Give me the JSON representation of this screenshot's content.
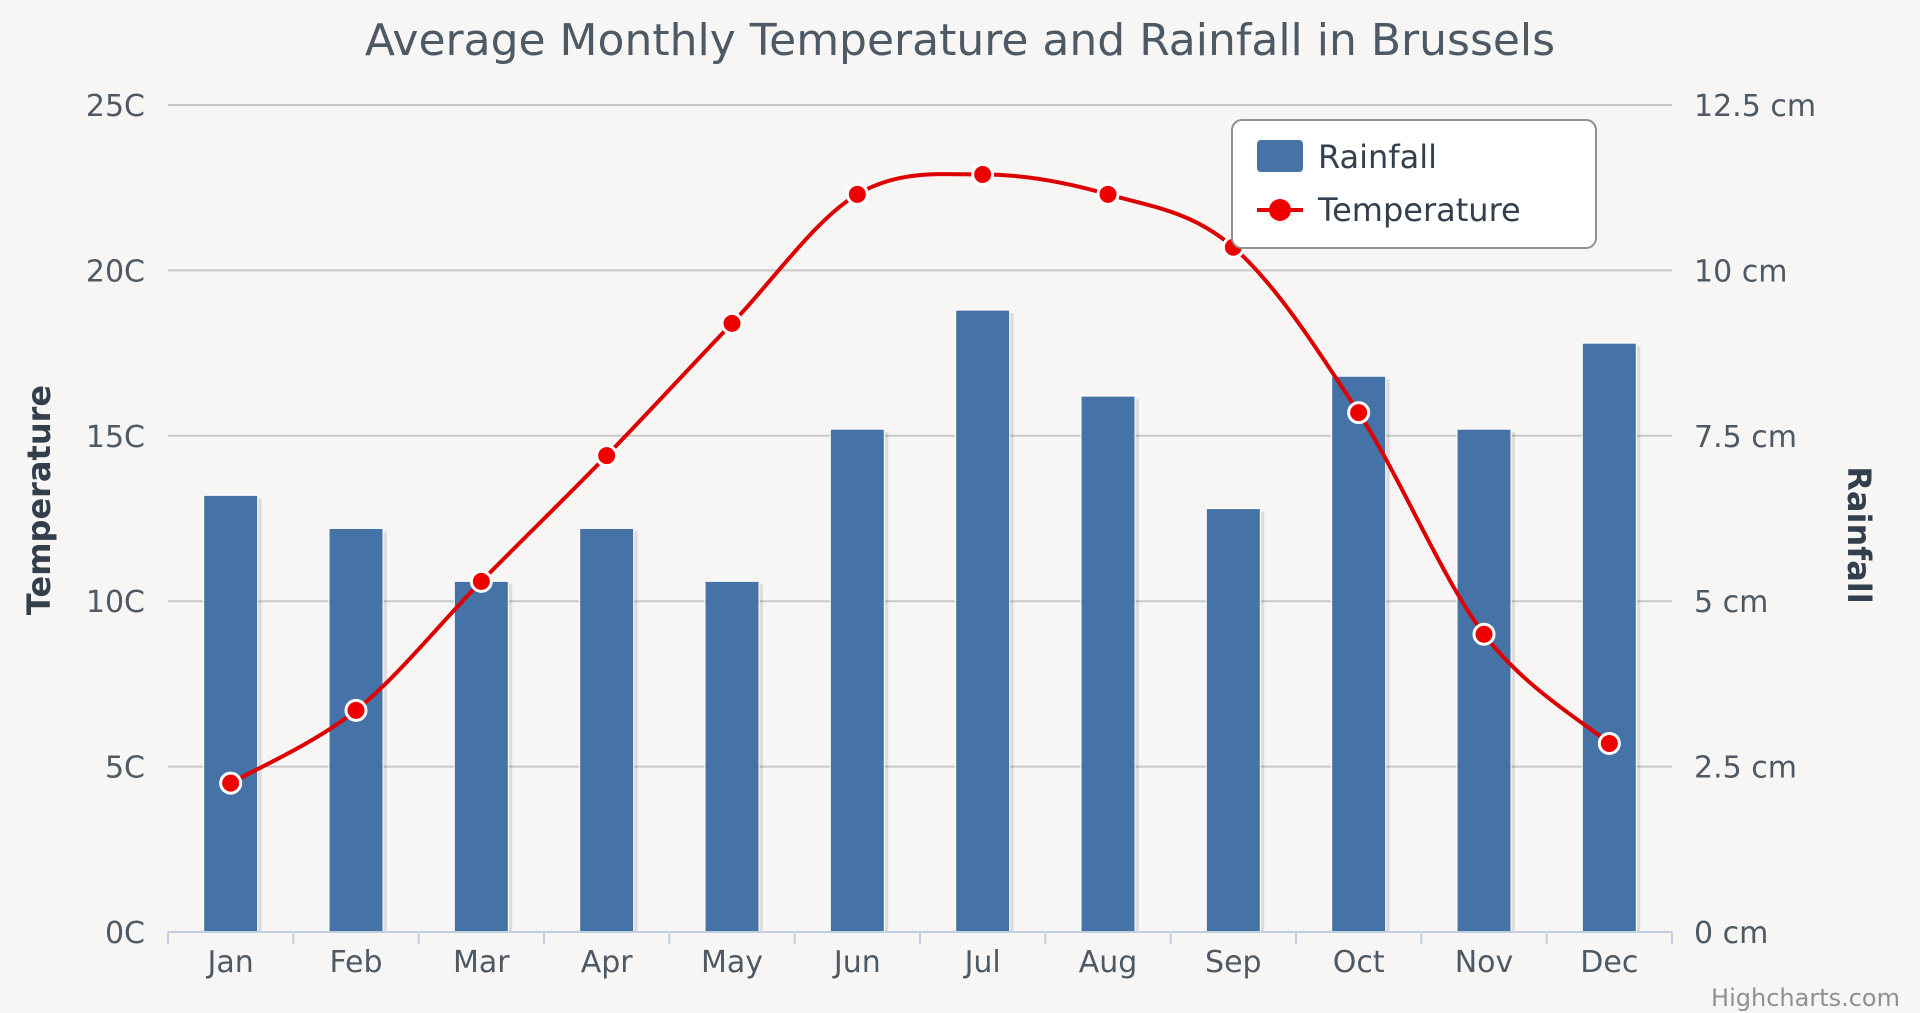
{
  "chart_data": {
    "type": "combo",
    "title": "Average Monthly Temperature and Rainfall in Brussels",
    "categories": [
      "Jan",
      "Feb",
      "Mar",
      "Apr",
      "May",
      "Jun",
      "Jul",
      "Aug",
      "Sep",
      "Oct",
      "Nov",
      "Dec"
    ],
    "series": [
      {
        "name": "Rainfall",
        "type": "bar",
        "axis": "right",
        "unit": "cm",
        "color": "#4572a7",
        "values": [
          6.6,
          6.1,
          5.3,
          6.1,
          5.3,
          7.6,
          9.4,
          8.1,
          6.4,
          8.4,
          7.6,
          8.9
        ]
      },
      {
        "name": "Temperature",
        "type": "line",
        "axis": "left",
        "unit": "C",
        "color": "#dd0000",
        "values": [
          4.5,
          6.7,
          10.6,
          14.4,
          18.4,
          22.3,
          22.9,
          22.3,
          20.7,
          15.7,
          9.0,
          5.7
        ]
      }
    ],
    "left_axis": {
      "label": "Temperature",
      "range": [
        0,
        25
      ],
      "ticks": [
        "0C",
        "5C",
        "10C",
        "15C",
        "20C",
        "25C"
      ]
    },
    "right_axis": {
      "label": "Rainfall",
      "range": [
        0,
        12.5
      ],
      "ticks": [
        "0 cm",
        "2.5 cm",
        "5 cm",
        "7.5 cm",
        "10 cm",
        "12.5 cm"
      ]
    },
    "legend": {
      "placement": "top-right",
      "items": [
        "Rainfall",
        "Temperature"
      ]
    },
    "grid": true,
    "credit": "Highcharts.com"
  }
}
